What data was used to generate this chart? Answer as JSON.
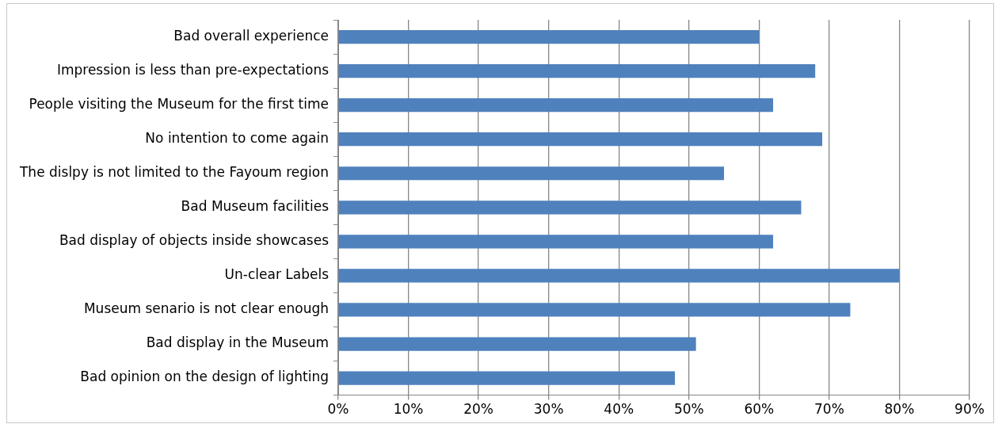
{
  "chart_data": {
    "type": "bar",
    "orientation": "horizontal",
    "categories": [
      "Bad overall experience",
      "Impression is less than pre-expectations",
      "People visiting the Museum for the first time",
      "No intention to come again",
      "The dislpy is not limited to the Fayoum region",
      "Bad Museum facilities",
      "Bad display of objects inside showcases",
      "Un-clear Labels",
      "Museum senario is not clear enough",
      "Bad display in the Museum",
      "Bad opinion on the design of lighting"
    ],
    "values": [
      60,
      68,
      62,
      69,
      55,
      66,
      62,
      80,
      73,
      51,
      48
    ],
    "color": "#4f81bd",
    "xlim": [
      0,
      90
    ],
    "xticks": [
      {
        "value": 0,
        "label": "0%"
      },
      {
        "value": 10,
        "label": "10%"
      },
      {
        "value": 20,
        "label": "20%"
      },
      {
        "value": 30,
        "label": "30%"
      },
      {
        "value": 40,
        "label": "40%"
      },
      {
        "value": 50,
        "label": "50%"
      },
      {
        "value": 60,
        "label": "60%"
      },
      {
        "value": 70,
        "label": "70%"
      },
      {
        "value": 80,
        "label": "80%"
      },
      {
        "value": 90,
        "label": "90%"
      }
    ],
    "grid": "x",
    "legend": false
  }
}
